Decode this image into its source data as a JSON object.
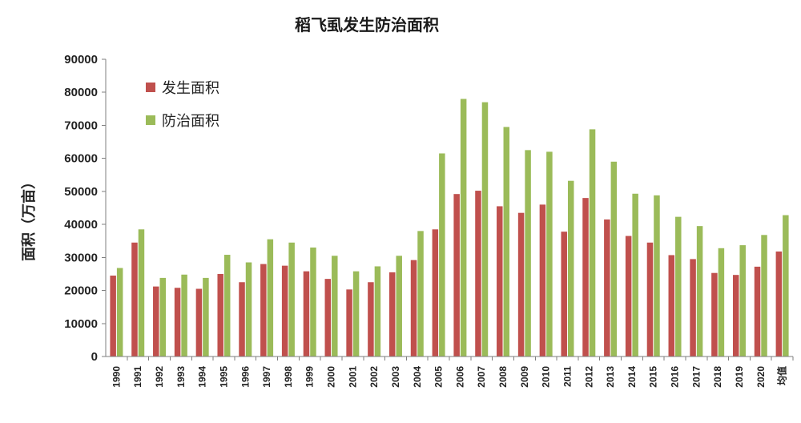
{
  "chart_data": {
    "type": "bar",
    "title": "稻飞虱发生防治面积",
    "ylabel": "面积（万亩）",
    "xlabel": "",
    "ylim": [
      0,
      90000
    ],
    "yticks": [
      "0",
      "10000",
      "20000",
      "30000",
      "40000",
      "50000",
      "60000",
      "70000",
      "80000",
      "90000"
    ],
    "grid": false,
    "legend_position": "top-left",
    "categories": [
      "1990",
      "1991",
      "1992",
      "1993",
      "1994",
      "1995",
      "1996",
      "1997",
      "1998",
      "1999",
      "2000",
      "2001",
      "2002",
      "2003",
      "2004",
      "2005",
      "2006",
      "2007",
      "2008",
      "2009",
      "2010",
      "2011",
      "2012",
      "2013",
      "2014",
      "2015",
      "2016",
      "2017",
      "2018",
      "2019",
      "2020",
      "均值"
    ],
    "series": [
      {
        "name": "发生面积",
        "color": "#c0504d",
        "values": [
          24500,
          34500,
          21200,
          20800,
          20500,
          25000,
          22500,
          28000,
          27500,
          25800,
          23500,
          20300,
          22500,
          25500,
          29200,
          38500,
          49200,
          50200,
          45500,
          43500,
          46000,
          37800,
          48000,
          41500,
          36500,
          34500,
          30700,
          29500,
          25300,
          24700,
          27200,
          31800
        ]
      },
      {
        "name": "防治面积",
        "color": "#9bbb59",
        "values": [
          26800,
          38500,
          23800,
          24800,
          23800,
          30800,
          28500,
          35500,
          34500,
          33000,
          30500,
          25800,
          27300,
          30500,
          38000,
          61500,
          78000,
          77000,
          69500,
          62500,
          62000,
          53200,
          68800,
          59000,
          49300,
          48800,
          42300,
          39500,
          32800,
          33700,
          36800,
          42800
        ]
      }
    ]
  }
}
